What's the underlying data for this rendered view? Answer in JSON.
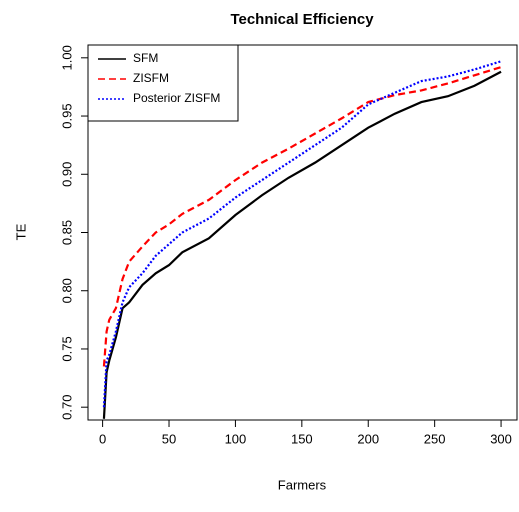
{
  "chart_data": {
    "type": "line",
    "title": "Technical Efficiency",
    "x_label": "Farmers",
    "y_label": "TE",
    "x": [
      1,
      3,
      5,
      10,
      15,
      20,
      30,
      40,
      50,
      60,
      80,
      100,
      120,
      140,
      160,
      180,
      200,
      220,
      240,
      260,
      280,
      300
    ],
    "series": [
      {
        "name": "SFM",
        "color": "#000000",
        "linestyle": "solid",
        "values": [
          0.69,
          0.73,
          0.74,
          0.76,
          0.785,
          0.79,
          0.805,
          0.815,
          0.822,
          0.833,
          0.845,
          0.865,
          0.882,
          0.897,
          0.91,
          0.925,
          0.94,
          0.952,
          0.962,
          0.967,
          0.976,
          0.988
        ]
      },
      {
        "name": "ZISFM",
        "color": "#ff0000",
        "linestyle": "dashed",
        "values": [
          0.735,
          0.765,
          0.775,
          0.785,
          0.81,
          0.825,
          0.838,
          0.85,
          0.857,
          0.866,
          0.878,
          0.895,
          0.91,
          0.922,
          0.935,
          0.948,
          0.962,
          0.968,
          0.972,
          0.978,
          0.985,
          0.992
        ]
      },
      {
        "name": "Posterior ZISFM",
        "color": "#0000ff",
        "linestyle": "dotted",
        "values": [
          0.7,
          0.74,
          0.745,
          0.765,
          0.79,
          0.803,
          0.815,
          0.83,
          0.84,
          0.85,
          0.862,
          0.88,
          0.895,
          0.91,
          0.925,
          0.94,
          0.96,
          0.97,
          0.98,
          0.984,
          0.99,
          0.997
        ]
      }
    ],
    "xlim": [
      -11,
      312
    ],
    "ylim": [
      0.689,
      1.011
    ],
    "xticks": [
      0,
      50,
      100,
      150,
      200,
      250,
      300
    ],
    "yticks": [
      {
        "value": 0.7,
        "label": "0.70"
      },
      {
        "value": 0.75,
        "label": "0.75"
      },
      {
        "value": 0.8,
        "label": "0.80"
      },
      {
        "value": 0.85,
        "label": "0.85"
      },
      {
        "value": 0.9,
        "label": "0.90"
      },
      {
        "value": 0.95,
        "label": "0.95"
      },
      {
        "value": 1.0,
        "label": "1.00"
      }
    ],
    "legend": "top-left"
  }
}
